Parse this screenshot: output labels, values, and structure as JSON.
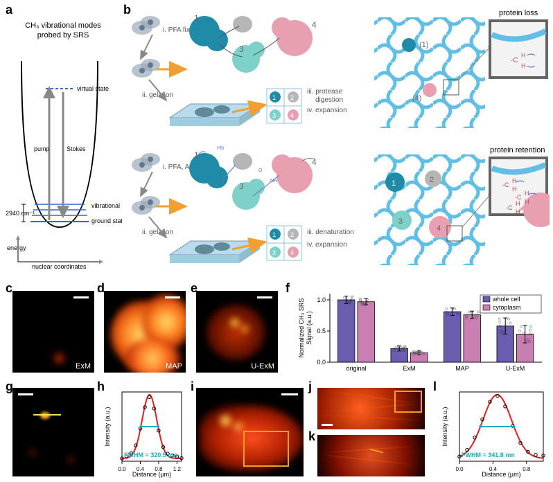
{
  "panelA": {
    "title_line1": "CH₃ vibrational modes",
    "title_line2": "probed by SRS",
    "labels": {
      "virtual": "virtual state",
      "vibrational": "vibrational states",
      "ground": "ground state",
      "pump": "pump",
      "stokes": "Stokes",
      "wavenumber": "2940 cm⁻¹",
      "energy": "energy",
      "xaxis": "nuclear coordinates"
    },
    "colors": {
      "well": "#000000",
      "levels": "#3366cc",
      "arrows": "#888888"
    }
  },
  "panelB": {
    "top": {
      "steps": {
        "i": "i. PFA fixation",
        "ii": "ii. gelation",
        "iii": "iii. protease",
        "iiib": "digestion",
        "iv": "iv. expansion"
      },
      "result_label": "protein loss",
      "annotations": {
        "left1": "(1)",
        "left4": "(4)"
      }
    },
    "bottom": {
      "steps": {
        "i": "i. PFA, AA",
        "ii": "ii. gelation",
        "iii": "iii. denaturation",
        "iv": "iv. expansion"
      },
      "result_label": "protein retention"
    },
    "proteins": {
      "n1": "1",
      "n2": "2",
      "n3": "3",
      "n4": "4"
    },
    "colors": {
      "p1": "#1f8ba8",
      "p2": "#b6b6b6",
      "p3": "#7ed1c8",
      "p4": "#e89fb0",
      "mesh": "#61bfe6",
      "cell": "#9ac8da",
      "cellDark": "#5f8a9a",
      "arrow_orange": "#f0a030",
      "inset_border": "#656565",
      "chem": "#5b76c9"
    }
  },
  "micrographs": {
    "c": {
      "label": "ExM",
      "hot_min": "#000000",
      "hot_max": "#ff3000"
    },
    "d": {
      "label": "MAP",
      "hot_min": "#200000",
      "hot_mid": "#ff6000",
      "hot_max": "#ffee66"
    },
    "e": {
      "label": "U-ExM"
    },
    "g": {
      "point_color": "#ff9a00",
      "line": "#f7e157"
    },
    "i": {
      "box_color": "#f0a020"
    },
    "jk": {
      "box_color": "#f0a020",
      "line": "#f0a020"
    }
  },
  "chartF": {
    "ylabel": "Normalized CH₃ SRS\nSignal (a.u.)",
    "yticks": [
      0.0,
      0.5,
      1.0
    ],
    "categories": [
      "original",
      "ExM",
      "MAP",
      "U-ExM"
    ],
    "series": [
      {
        "name": "whole cell",
        "color": "#6b5db0",
        "values": [
          1.0,
          0.22,
          0.81,
          0.58
        ],
        "err": [
          0.06,
          0.04,
          0.06,
          0.13
        ]
      },
      {
        "name": "cytoplasm",
        "color": "#c97fb1",
        "values": [
          0.97,
          0.15,
          0.76,
          0.45
        ],
        "err": [
          0.05,
          0.03,
          0.06,
          0.14
        ]
      }
    ],
    "scatter_opacity": 0.6,
    "bar_border": "#000000",
    "ymax": 1.1
  },
  "plotH": {
    "fwhm_label": "FWHM = 320.5 nm",
    "fwhm_color": "#18adc6",
    "curve_color": "#e02020",
    "point_color": "#000000",
    "xlabel": "Distance (µm)",
    "ylabel": "Intensity (a.u.)",
    "xticks": [
      "0.0",
      "0.4",
      "0.8",
      "1.2"
    ],
    "xmax": 1.3,
    "peak_x": 0.6,
    "sigma": 0.16,
    "npts": 14
  },
  "plotL": {
    "fwhm_label": "FWHM = 341.8 nm",
    "fwhm_color": "#18adc6",
    "curve_color": "#e02020",
    "point_color": "#000000",
    "xlabel": "Distance (µm)",
    "ylabel": "Intensity (a.u.)",
    "xticks": [
      "0.0",
      "0.4",
      "0.8"
    ],
    "xmax": 1.0,
    "peak_x": 0.45,
    "sigma": 0.17,
    "npts": 12
  }
}
